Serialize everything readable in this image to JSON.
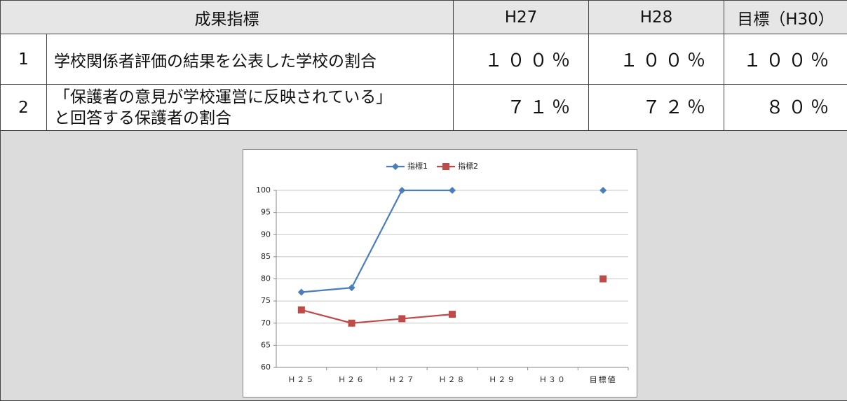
{
  "table": {
    "header": [
      "成果指標",
      "H27",
      "H28",
      "目標（H30）"
    ],
    "rows": [
      [
        "1",
        [
          "学校関係者評価の結果を公表した学校の割合"
        ],
        "１００％",
        "１００％",
        "１００％"
      ],
      [
        "2",
        [
          "「保護者の意見が学校運営に反映されている」",
          "と回答する保護者の割合"
        ],
        "７１％",
        "７２％",
        "８０％"
      ]
    ]
  },
  "chart_data": {
    "type": "line",
    "categories": [
      "Ｈ２５",
      "Ｈ２６",
      "Ｈ２７",
      "Ｈ２８",
      "Ｈ２９",
      "Ｈ３０",
      "目標値"
    ],
    "series": [
      {
        "name": "指標1",
        "color": "#4a7ebb",
        "marker": "diamond",
        "values": [
          77,
          78,
          100,
          100,
          null,
          null,
          100
        ]
      },
      {
        "name": "指標2",
        "color": "#be4b48",
        "marker": "square",
        "values": [
          73,
          70,
          71,
          72,
          null,
          null,
          80
        ]
      }
    ],
    "ylim": [
      60,
      100
    ],
    "yticks": [
      60,
      65,
      70,
      75,
      80,
      85,
      90,
      95,
      100
    ],
    "grid": true,
    "legend": "top"
  }
}
